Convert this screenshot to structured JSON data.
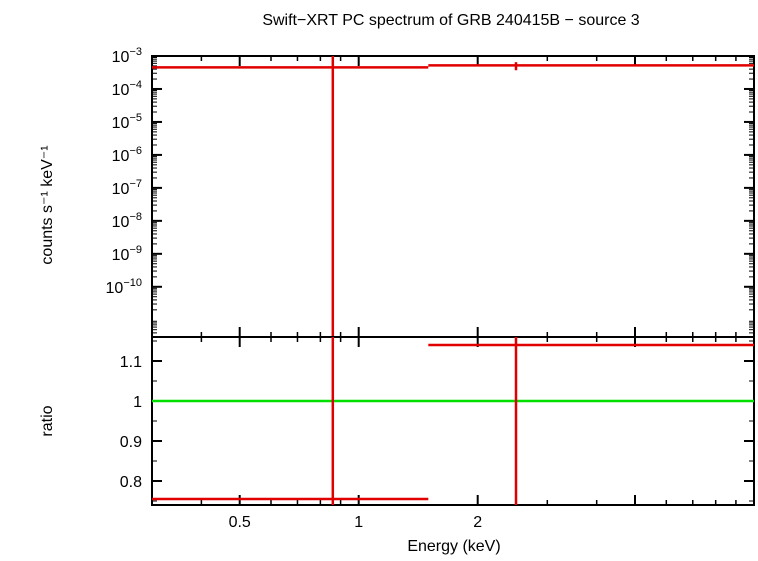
{
  "chart_data": {
    "type": "scatter",
    "title": "Swift−XRT PC spectrum of GRB 240415B − source 3",
    "xlabel": "Energy (keV)",
    "x_scale": "log",
    "xlim": [
      0.3,
      10
    ],
    "x_ticks": [
      {
        "value": 0.5,
        "label": "0.5"
      },
      {
        "value": 1,
        "label": "1"
      },
      {
        "value": 2,
        "label": "2"
      }
    ],
    "panels": [
      {
        "name": "spectrum",
        "ylabel": "counts s⁻¹ keV⁻¹",
        "y_scale": "log",
        "ylim": [
          3e-12,
          0.001
        ],
        "y_ticks": [
          {
            "value": 0.001,
            "base": "10",
            "exp": "−3"
          },
          {
            "value": 0.0001,
            "base": "10",
            "exp": "−4"
          },
          {
            "value": 1e-05,
            "base": "10",
            "exp": "−5"
          },
          {
            "value": 1e-06,
            "base": "10",
            "exp": "−6"
          },
          {
            "value": 1e-07,
            "base": "10",
            "exp": "−7"
          },
          {
            "value": 1e-08,
            "base": "10",
            "exp": "−8"
          },
          {
            "value": 1e-09,
            "base": "10",
            "exp": "−9"
          },
          {
            "value": 1e-10,
            "base": "10",
            "exp": "−10"
          }
        ],
        "series": [
          {
            "color": "#e00000",
            "points": [
              {
                "x": 0.86,
                "x_lo": 0.3,
                "x_hi": 1.5,
                "y": 0.00045,
                "y_lo": 3e-12,
                "y_hi": 0.001
              },
              {
                "x": 2.5,
                "x_lo": 1.5,
                "x_hi": 10,
                "y": 0.00052,
                "y_lo": 0.00037,
                "y_hi": 0.00065
              }
            ]
          }
        ]
      },
      {
        "name": "ratio",
        "ylabel": "ratio",
        "y_scale": "linear",
        "ylim": [
          0.74,
          1.16
        ],
        "y_ticks": [
          {
            "value": 0.8,
            "label": "0.8"
          },
          {
            "value": 0.9,
            "label": "0.9"
          },
          {
            "value": 1,
            "label": "1"
          },
          {
            "value": 1.1,
            "label": "1.1"
          }
        ],
        "reference_line": {
          "y": 1,
          "color": "#00e000"
        },
        "series": [
          {
            "color": "#e00000",
            "points": [
              {
                "x": 0.86,
                "x_lo": 0.3,
                "x_hi": 1.5,
                "y": 0.755,
                "y_lo": 0.74,
                "y_hi": 1.16
              },
              {
                "x": 2.5,
                "x_lo": 1.5,
                "x_hi": 10,
                "y": 1.14,
                "y_lo": 0.74,
                "y_hi": 1.16
              }
            ]
          }
        ]
      }
    ]
  }
}
